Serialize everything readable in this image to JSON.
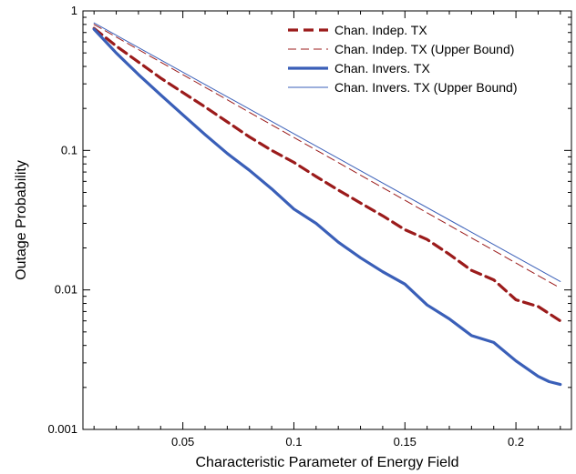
{
  "chart_data": {
    "type": "line",
    "xlabel": "Characteristic Parameter of Energy Field",
    "ylabel": "Outage Probability",
    "xlim": [
      0.005,
      0.225
    ],
    "ylim": [
      0.001,
      1
    ],
    "yscale": "log",
    "xticks": [
      0.05,
      0.1,
      0.15,
      0.2
    ],
    "xtick_labels": [
      "0.05",
      "0.1",
      "0.15",
      "0.2"
    ],
    "yticks": [
      0.001,
      0.01,
      0.1,
      1
    ],
    "ytick_labels": [
      "0.001",
      "0.01",
      "0.1",
      "1"
    ],
    "grid": false,
    "legend_position": "top-right",
    "series": [
      {
        "name": "Chan. Indep. TX",
        "color": "#9b1b1b",
        "style": "dashed-thick",
        "x": [
          0.01,
          0.02,
          0.03,
          0.04,
          0.05,
          0.06,
          0.07,
          0.08,
          0.09,
          0.1,
          0.11,
          0.12,
          0.13,
          0.14,
          0.15,
          0.16,
          0.17,
          0.18,
          0.19,
          0.2,
          0.21,
          0.22
        ],
        "y": [
          0.75,
          0.56,
          0.43,
          0.33,
          0.26,
          0.205,
          0.16,
          0.125,
          0.1,
          0.082,
          0.065,
          0.052,
          0.042,
          0.034,
          0.027,
          0.023,
          0.018,
          0.0138,
          0.0118,
          0.0085,
          0.0076,
          0.006
        ]
      },
      {
        "name": "Chan. Indep. TX (Upper Bound)",
        "color": "#9b1b1b",
        "style": "dashed-thin",
        "x": [
          0.01,
          0.22
        ],
        "y": [
          0.8,
          0.0103
        ]
      },
      {
        "name": "Chan. Invers. TX",
        "color": "#3a5fb8",
        "style": "solid-thick",
        "x": [
          0.01,
          0.02,
          0.03,
          0.04,
          0.05,
          0.06,
          0.07,
          0.08,
          0.09,
          0.1,
          0.11,
          0.12,
          0.13,
          0.14,
          0.15,
          0.16,
          0.17,
          0.18,
          0.19,
          0.2,
          0.21,
          0.215,
          0.22
        ],
        "y": [
          0.74,
          0.5,
          0.35,
          0.25,
          0.18,
          0.13,
          0.095,
          0.072,
          0.053,
          0.038,
          0.03,
          0.022,
          0.017,
          0.0135,
          0.011,
          0.0078,
          0.0062,
          0.0047,
          0.0042,
          0.0031,
          0.0024,
          0.0022,
          0.0021
        ]
      },
      {
        "name": "Chan. Invers. TX (Upper Bound)",
        "color": "#3a5fb8",
        "style": "solid-thin",
        "x": [
          0.01,
          0.22
        ],
        "y": [
          0.82,
          0.0115
        ]
      }
    ]
  }
}
